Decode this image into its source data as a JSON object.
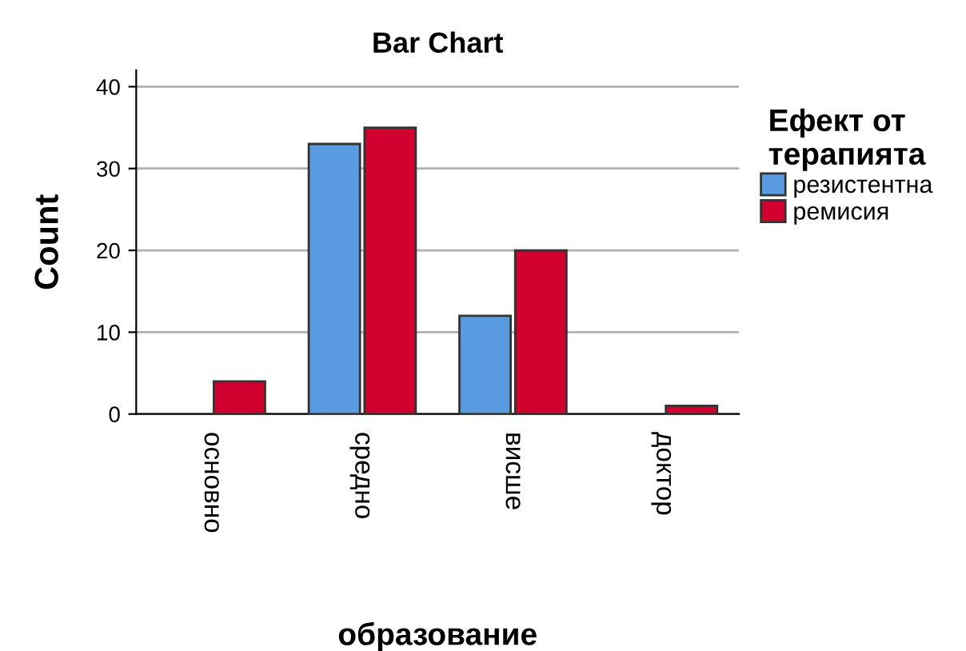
{
  "chart_data": {
    "type": "bar",
    "title": "Bar Chart",
    "xlabel": "образование",
    "ylabel": "Count",
    "legend_title": "Ефект от\nтерапията",
    "categories": [
      "основно",
      "средно",
      "висше",
      "доктор"
    ],
    "series": [
      {
        "name": "резистентна",
        "color": "#5a9ae0",
        "values": [
          null,
          33,
          12,
          null
        ]
      },
      {
        "name": "ремисия",
        "color": "#d2002f",
        "values": [
          4,
          35,
          20,
          1
        ]
      }
    ],
    "ylim": [
      0,
      42
    ],
    "yticks": [
      0,
      10,
      20,
      30,
      40
    ],
    "grid": "y",
    "legend": "right"
  }
}
